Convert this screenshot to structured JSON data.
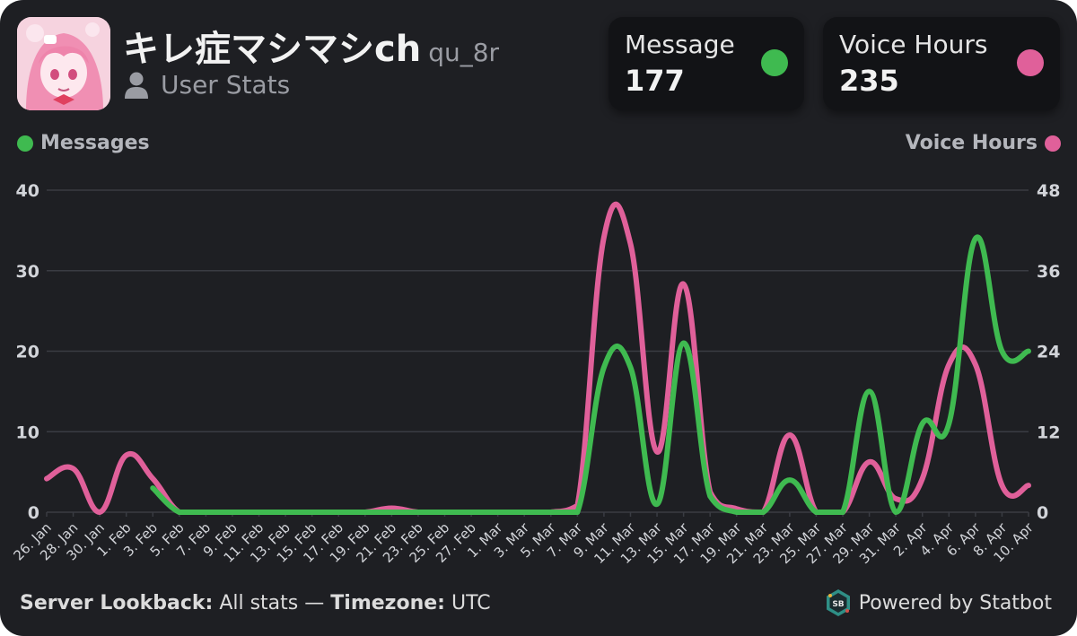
{
  "header": {
    "username": "キレ症マシマシch",
    "handle": "qu_8r",
    "subtitle": "User Stats",
    "avatar_icon": "anime-avatar-icon",
    "user_icon": "user-icon"
  },
  "stats": [
    {
      "label": "Message",
      "value": "177",
      "color": "#3fba50"
    },
    {
      "label": "Voice Hours",
      "value": "235",
      "color": "#e0609a"
    }
  ],
  "legend": {
    "left": "Messages",
    "right": "Voice Hours"
  },
  "footer": {
    "lookback_label": "Server Lookback:",
    "lookback_value": "All stats",
    "separator": "—",
    "timezone_label": "Timezone:",
    "timezone_value": "UTC",
    "powered_by": "Powered by Statbot",
    "logo_icon": "statbot-logo-icon"
  },
  "colors": {
    "background": "#1e1f23",
    "messages": "#3fba50",
    "voice": "#e0609a",
    "grid": "#3a3c43"
  },
  "chart_data": {
    "type": "line",
    "x": [
      "26. Jan",
      "28. Jan",
      "30. Jan",
      "1. Feb",
      "3. Feb",
      "5. Feb",
      "7. Feb",
      "9. Feb",
      "11. Feb",
      "13. Feb",
      "15. Feb",
      "17. Feb",
      "19. Feb",
      "21. Feb",
      "23. Feb",
      "25. Feb",
      "27. Feb",
      "1. Mar",
      "3. Mar",
      "5. Mar",
      "7. Mar",
      "9. Mar",
      "11. Mar",
      "13. Mar",
      "15. Mar",
      "17. Mar",
      "19. Mar",
      "21. Mar",
      "23. Mar",
      "25. Mar",
      "27. Mar",
      "29. Mar",
      "31. Mar",
      "2. Apr",
      "4. Apr",
      "6. Apr",
      "8. Apr",
      "10. Apr"
    ],
    "xtick_labels": [
      "26. Jan",
      "28. Jan",
      "30. Jan",
      "1. Feb",
      "3. Feb",
      "5. Feb",
      "7. Feb",
      "9. Feb",
      "11. Feb",
      "13. Feb",
      "15. Feb",
      "17. Feb",
      "19. Feb",
      "21. Feb",
      "23. Feb",
      "25. Feb",
      "27. Feb",
      "1. Mar",
      "3. Mar",
      "5. Mar",
      "7. Mar",
      "9. Mar",
      "11. Mar",
      "13. Mar",
      "15. Mar",
      "17. Mar",
      "19. Mar",
      "21. Mar",
      "23. Mar",
      "25. Mar",
      "27. Mar",
      "29. Mar",
      "31. Mar",
      "2. Apr",
      "4. Apr",
      "6. Apr",
      "8. Apr",
      "10. Apr"
    ],
    "series": [
      {
        "name": "Messages",
        "axis": "left",
        "color": "#3fba50",
        "values": [
          null,
          null,
          null,
          null,
          3,
          0,
          0,
          0,
          0,
          0,
          0,
          0,
          0,
          0,
          0,
          0,
          0,
          0,
          0,
          0,
          0,
          18,
          18,
          1,
          21,
          2,
          0,
          0,
          4,
          0,
          0,
          15,
          0,
          11,
          11,
          34,
          20,
          20
        ]
      },
      {
        "name": "Voice Hours",
        "axis": "right",
        "color": "#e0609a",
        "values": [
          5,
          6.5,
          0,
          8.5,
          5,
          0,
          0,
          0,
          0,
          0,
          0,
          0,
          0,
          0.6,
          0,
          0,
          0,
          0,
          0,
          0,
          1,
          41,
          40,
          9,
          34,
          3,
          0.5,
          0,
          11.5,
          0,
          0,
          7.5,
          2,
          5,
          22,
          22,
          4,
          4
        ]
      }
    ],
    "y_left": {
      "min": 0,
      "max": 40,
      "ticks": [
        0,
        10,
        20,
        30,
        40
      ]
    },
    "y_right": {
      "min": 0,
      "max": 48,
      "ticks": [
        0,
        12,
        24,
        36,
        48
      ]
    },
    "grid": true,
    "legend_placement": "top"
  }
}
